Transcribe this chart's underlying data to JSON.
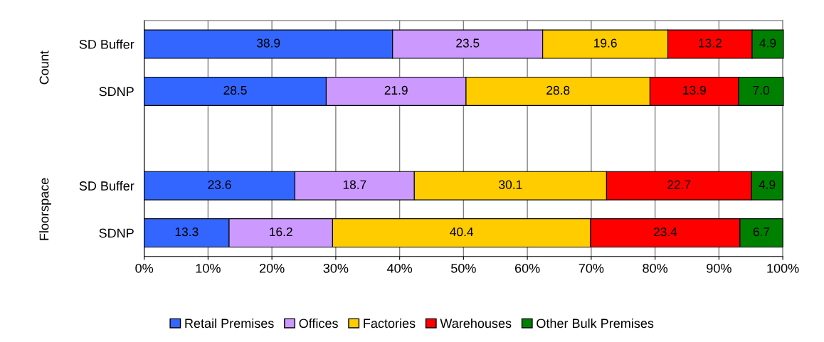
{
  "chart_data": {
    "type": "bar",
    "orientation": "horizontal",
    "stacked": true,
    "categories": [
      "SD Buffer",
      "SDNP",
      null,
      "SD Buffer",
      "SDNP"
    ],
    "series": [
      {
        "name": "Retail Premises",
        "color": "#3366ff",
        "values": [
          38.9,
          28.5,
          null,
          23.6,
          13.3
        ]
      },
      {
        "name": "Offices",
        "color": "#cc99ff",
        "values": [
          23.5,
          21.9,
          null,
          18.7,
          16.2
        ]
      },
      {
        "name": "Factories",
        "color": "#ffcc00",
        "values": [
          19.6,
          28.8,
          null,
          30.1,
          40.4
        ]
      },
      {
        "name": "Warehouses",
        "color": "#ff0000",
        "values": [
          13.2,
          13.9,
          null,
          22.7,
          23.4
        ]
      },
      {
        "name": "Other Bulk Premises",
        "color": "#008000",
        "values": [
          4.9,
          7.0,
          null,
          4.9,
          6.7
        ],
        "value_labels": [
          "4.9",
          "7.0",
          null,
          "4.9",
          "6.7"
        ]
      }
    ],
    "annotations": [
      "Count",
      "Floorspace"
    ],
    "xlim": [
      0,
      100
    ],
    "xticks": [
      {
        "value": 0,
        "label": "0%"
      },
      {
        "value": 10,
        "label": "10%"
      },
      {
        "value": 20,
        "label": "20%"
      },
      {
        "value": 30,
        "label": "30%"
      },
      {
        "value": 40,
        "label": "40%"
      },
      {
        "value": 50,
        "label": "50%"
      },
      {
        "value": 60,
        "label": "60%"
      },
      {
        "value": 70,
        "label": "70%"
      },
      {
        "value": 80,
        "label": "80%"
      },
      {
        "value": 90,
        "label": "90%"
      },
      {
        "value": 100,
        "label": "100%"
      }
    ],
    "grid": "x",
    "legend": "bottom",
    "data_labels": true
  }
}
